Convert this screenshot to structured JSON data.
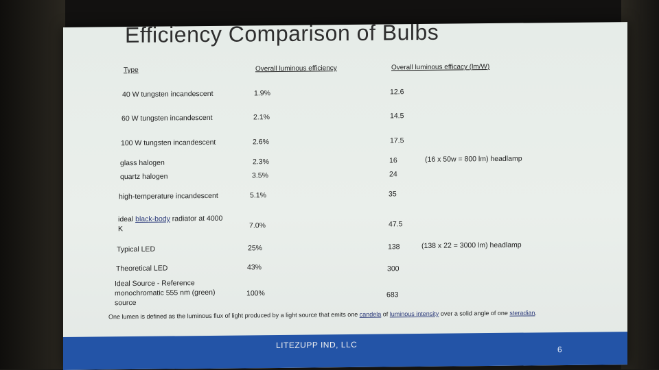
{
  "slide": {
    "title": "Efficiency Comparison of Bulbs",
    "headers": {
      "type": "Type",
      "efficiency": "Overall luminous efficiency",
      "efficacy": "Overall luminous efficacy (lm/W)"
    },
    "rows": [
      {
        "type": "40 W tungsten incandescent",
        "efficiency": "1.9%",
        "efficacy": "12.6",
        "note": ""
      },
      {
        "type": "60 W tungsten incandescent",
        "efficiency": "2.1%",
        "efficacy": "14.5",
        "note": ""
      },
      {
        "type": "100 W tungsten incandescent",
        "efficiency": "2.6%",
        "efficacy": "17.5",
        "note": ""
      },
      {
        "type": "glass halogen",
        "efficiency": "2.3%",
        "efficacy": "16",
        "note": "(16 x 50w = 800 lm)  headlamp"
      },
      {
        "type": "quartz halogen",
        "efficiency": "3.5%",
        "efficacy": "24",
        "note": ""
      },
      {
        "type": "high-temperature incandescent",
        "efficiency": "5.1%",
        "efficacy": "35",
        "note": ""
      },
      {
        "type_prefix": "ideal ",
        "type_link": "black-body",
        "type_suffix": " radiator at 4000 K",
        "efficiency": "7.0%",
        "efficacy": "47.5",
        "note": ""
      },
      {
        "type": "Typical LED",
        "efficiency": "25%",
        "efficacy": "138",
        "note": "(138 x 22 = 3000 lm) headlamp"
      },
      {
        "type": "Theoretical LED",
        "efficiency": "43%",
        "efficacy": "300",
        "note": ""
      },
      {
        "type": "Ideal Source - Reference monochromatic 555 nm (green) source",
        "efficiency": "100%",
        "efficacy": "683",
        "note": ""
      }
    ],
    "footnote": {
      "part1": "One lumen is defined as the luminous flux of light produced by a light source that emits one ",
      "link1": "candela",
      "part2": " of ",
      "link2": "luminous intensity",
      "part3": " over a solid angle of one ",
      "link3": "steradian",
      "part4": "."
    },
    "footer": {
      "company": "LITEZUPP IND, LLC",
      "page_number": "6"
    }
  },
  "colors": {
    "slide_background": "#e6ece8",
    "footer_bar": "#2354a7",
    "link": "#2c3a7a",
    "text": "#1f1f1f"
  }
}
